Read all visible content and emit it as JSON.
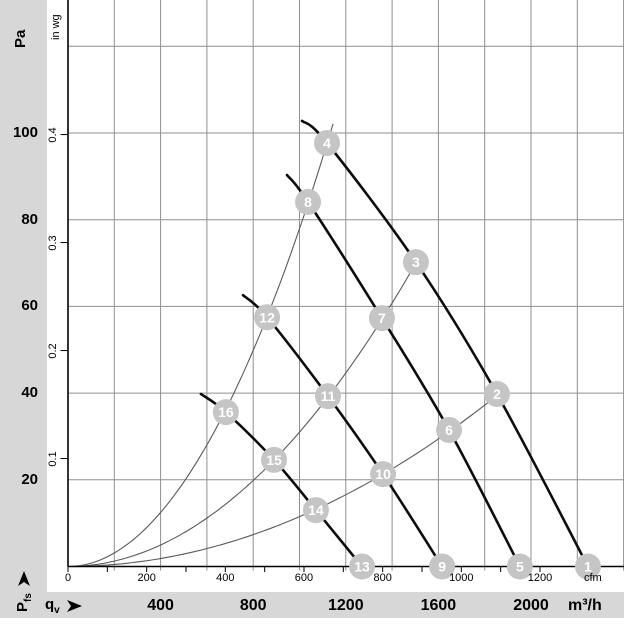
{
  "page": {
    "bg": "#d7d7d7",
    "panel": "#ffffff"
  },
  "colors": {
    "grid": "#8f8f8f",
    "axis": "#000000",
    "fan_curve": "#0d0d0d",
    "parabola": "#5a5a5a",
    "marker_fill": "#c5c5c5",
    "marker_text": "#ffffff",
    "text": "#000000"
  },
  "axes": {
    "left_primary": {
      "title": "Pa",
      "tick_labels": [
        20,
        40,
        60,
        80,
        100
      ]
    },
    "left_secondary": {
      "title": "in wg",
      "tick_labels": [
        0.1,
        0.2,
        0.3,
        0.4
      ]
    },
    "bottom_primary": {
      "unit": "m³/h",
      "tick_labels": [
        400,
        800,
        1200,
        1600,
        2000
      ]
    },
    "bottom_secondary": {
      "unit": "cfm",
      "tick_labels": [
        0,
        200,
        400,
        600,
        800,
        1000,
        1200
      ]
    },
    "pfs": {
      "base": "P",
      "sub": "fs"
    },
    "qv": {
      "base": "q",
      "sub": "v"
    }
  },
  "chart_data": {
    "type": "line",
    "title": "",
    "x_unit": "m³/h",
    "x_unit_secondary": "cfm",
    "y_unit": "Pa",
    "y_unit_secondary": "in wg",
    "x_range_m3h": [
      0,
      2400
    ],
    "y_range_Pa": [
      0,
      131
    ],
    "grid": {
      "x_step_m3h": 200,
      "y_step_Pa": 20,
      "y_grid_Pa": [
        20,
        40,
        60,
        80,
        100,
        120
      ]
    },
    "legend": "circled numbers mark operating points on four fan speed curves",
    "fan_curves": [
      {
        "name": "fan-curve-speed-1",
        "points": [
          {
            "m3h": 1011,
            "Pa": 102.8,
            "label": null
          },
          {
            "m3h": 1119,
            "Pa": 97.7,
            "label": "4"
          },
          {
            "m3h": 1503,
            "Pa": 70.2,
            "label": "3"
          },
          {
            "m3h": 1853,
            "Pa": 39.8,
            "label": "2"
          },
          {
            "m3h": 2246,
            "Pa": 0,
            "label": "1"
          }
        ]
      },
      {
        "name": "fan-curve-speed-2",
        "points": [
          {
            "m3h": 946,
            "Pa": 90.3,
            "label": null
          },
          {
            "m3h": 1037,
            "Pa": 84.1,
            "label": "8"
          },
          {
            "m3h": 1356,
            "Pa": 57.3,
            "label": "7"
          },
          {
            "m3h": 1646,
            "Pa": 31.5,
            "label": "6"
          },
          {
            "m3h": 1952,
            "Pa": 0,
            "label": "5"
          }
        ]
      },
      {
        "name": "fan-curve-speed-3",
        "points": [
          {
            "m3h": 756,
            "Pa": 62.6,
            "label": null
          },
          {
            "m3h": 860,
            "Pa": 57.5,
            "label": "12"
          },
          {
            "m3h": 1123,
            "Pa": 39.3,
            "label": "11"
          },
          {
            "m3h": 1361,
            "Pa": 21.3,
            "label": "10"
          },
          {
            "m3h": 1616,
            "Pa": 0,
            "label": "9"
          }
        ]
      },
      {
        "name": "fan-curve-speed-4",
        "points": [
          {
            "m3h": 574,
            "Pa": 39.8,
            "label": null
          },
          {
            "m3h": 682,
            "Pa": 35.6,
            "label": "16"
          },
          {
            "m3h": 890,
            "Pa": 24.6,
            "label": "15"
          },
          {
            "m3h": 1071,
            "Pa": 13.0,
            "label": "14"
          },
          {
            "m3h": 1270,
            "Pa": 0,
            "label": "13"
          }
        ]
      }
    ],
    "system_parabolas": [
      {
        "name": "system-parabola-1",
        "k_Pa_per_m3h2": 7.79e-05,
        "q_max_m3h": 1145
      },
      {
        "name": "system-parabola-2",
        "k_Pa_per_m3h2": 3.1e-05,
        "q_max_m3h": 1529
      },
      {
        "name": "system-parabola-3",
        "k_Pa_per_m3h2": 1.149e-05,
        "q_max_m3h": 1879
      }
    ]
  }
}
